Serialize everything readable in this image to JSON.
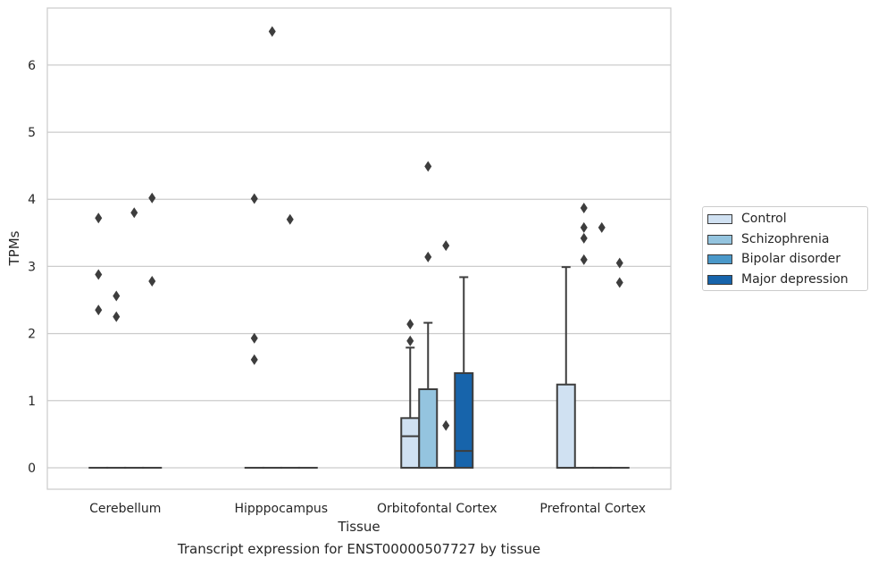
{
  "chart_data": {
    "type": "box",
    "xlabel": "Tissue",
    "ylabel": "TPMs",
    "caption": "Transcript expression for ENST00000507727 by tissue",
    "categories": [
      "Cerebellum",
      "Hipppocampus",
      "Orbitofontal Cortex",
      "Prefrontal Cortex"
    ],
    "y_ticks": [
      "0",
      "1",
      "2",
      "3",
      "4",
      "5",
      "6"
    ],
    "ylim": [
      -0.32,
      6.85
    ],
    "grid": "horizontal",
    "legend_position": "right",
    "series": [
      {
        "name": "Control",
        "color": "#d0e1f2"
      },
      {
        "name": "Schizophrenia",
        "color": "#94c4df"
      },
      {
        "name": "Bipolar disorder",
        "color": "#4a98c9"
      },
      {
        "name": "Major depression",
        "color": "#1764ab"
      }
    ],
    "boxes": [
      {
        "category": 0,
        "series": 0,
        "q1": 0,
        "median": 0,
        "q3": 0,
        "whisker_low": 0,
        "whisker_high": 0,
        "outliers": [
          3.72,
          2.88,
          2.35
        ]
      },
      {
        "category": 0,
        "series": 1,
        "q1": 0,
        "median": 0,
        "q3": 0,
        "whisker_low": 0,
        "whisker_high": 0,
        "outliers": [
          2.56,
          2.25
        ]
      },
      {
        "category": 0,
        "series": 2,
        "q1": 0,
        "median": 0,
        "q3": 0,
        "whisker_low": 0,
        "whisker_high": 0,
        "outliers": [
          3.8
        ]
      },
      {
        "category": 0,
        "series": 3,
        "q1": 0,
        "median": 0,
        "q3": 0,
        "whisker_low": 0,
        "whisker_high": 0,
        "outliers": [
          4.02,
          2.78
        ]
      },
      {
        "category": 1,
        "series": 0,
        "q1": 0,
        "median": 0,
        "q3": 0,
        "whisker_low": 0,
        "whisker_high": 0,
        "outliers": [
          4.01,
          1.93,
          1.61
        ]
      },
      {
        "category": 1,
        "series": 1,
        "q1": 0,
        "median": 0,
        "q3": 0,
        "whisker_low": 0,
        "whisker_high": 0,
        "outliers": [
          6.5
        ]
      },
      {
        "category": 1,
        "series": 2,
        "q1": 0,
        "median": 0,
        "q3": 0,
        "whisker_low": 0,
        "whisker_high": 0,
        "outliers": [
          3.7
        ]
      },
      {
        "category": 1,
        "series": 3,
        "q1": 0,
        "median": 0,
        "q3": 0,
        "whisker_low": 0,
        "whisker_high": 0,
        "outliers": []
      },
      {
        "category": 2,
        "series": 0,
        "q1": 0,
        "median": 0.47,
        "q3": 0.74,
        "whisker_low": 0,
        "whisker_high": 1.79,
        "outliers": [
          2.14,
          1.89
        ]
      },
      {
        "category": 2,
        "series": 1,
        "q1": 0,
        "median": 0,
        "q3": 1.17,
        "whisker_low": 0,
        "whisker_high": 2.16,
        "outliers": [
          4.49,
          3.14
        ]
      },
      {
        "category": 2,
        "series": 2,
        "q1": 0,
        "median": 0,
        "q3": 0,
        "whisker_low": 0,
        "whisker_high": 0,
        "outliers": [
          3.31,
          0.63
        ]
      },
      {
        "category": 2,
        "series": 3,
        "q1": 0,
        "median": 0.25,
        "q3": 1.41,
        "whisker_low": 0,
        "whisker_high": 2.84,
        "outliers": []
      },
      {
        "category": 3,
        "series": 0,
        "q1": 0,
        "median": 0,
        "q3": 1.24,
        "whisker_low": 0,
        "whisker_high": 2.99,
        "outliers": []
      },
      {
        "category": 3,
        "series": 1,
        "q1": 0,
        "median": 0,
        "q3": 0,
        "whisker_low": 0,
        "whisker_high": 0,
        "outliers": [
          3.1,
          3.87,
          3.58,
          3.42
        ]
      },
      {
        "category": 3,
        "series": 2,
        "q1": 0,
        "median": 0,
        "q3": 0,
        "whisker_low": 0,
        "whisker_high": 0,
        "outliers": [
          3.58
        ]
      },
      {
        "category": 3,
        "series": 3,
        "q1": 0,
        "median": 0,
        "q3": 0,
        "whisker_low": 0,
        "whisker_high": 0,
        "outliers": [
          3.05,
          2.76
        ]
      }
    ]
  }
}
